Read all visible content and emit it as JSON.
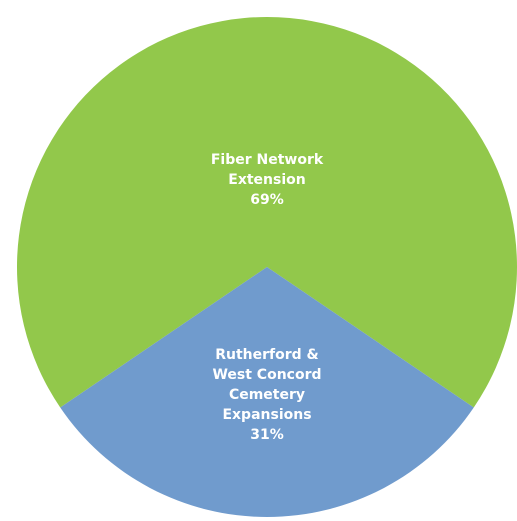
{
  "chart_data": {
    "type": "pie",
    "title": "",
    "slices": [
      {
        "name": "Fiber Network Extension",
        "value": 69,
        "label_lines": [
          "Fiber Network",
          "Extension",
          "69%"
        ],
        "color": "#92c84b"
      },
      {
        "name": "Rutherford & West Concord Cemetery Expansions",
        "value": 31,
        "label_lines": [
          "Rutherford &",
          "West Concord",
          "Cemetery",
          "Expansions",
          "31%"
        ],
        "color": "#709bcd"
      }
    ],
    "legend": "none",
    "data_labels": "inside"
  }
}
